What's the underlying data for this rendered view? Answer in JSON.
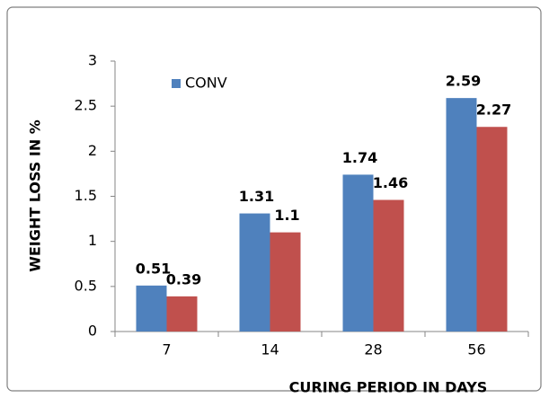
{
  "chart_data": {
    "type": "bar",
    "categories": [
      "7",
      "14",
      "28",
      "56"
    ],
    "series": [
      {
        "name": "CONV",
        "color": "#4f81bd",
        "values": [
          0.51,
          1.31,
          1.74,
          2.59
        ]
      },
      {
        "color": "#c0504d",
        "values": [
          0.39,
          1.1,
          1.46,
          2.27
        ]
      }
    ],
    "xlabel": "CURING PERIOD IN DAYS",
    "ylabel": "WEIGHT  LOSS IN %",
    "ylim": [
      0,
      3
    ],
    "yticks": [
      0,
      0.5,
      1,
      1.5,
      2,
      2.5,
      3
    ],
    "grid": false,
    "legend": "upper left"
  }
}
